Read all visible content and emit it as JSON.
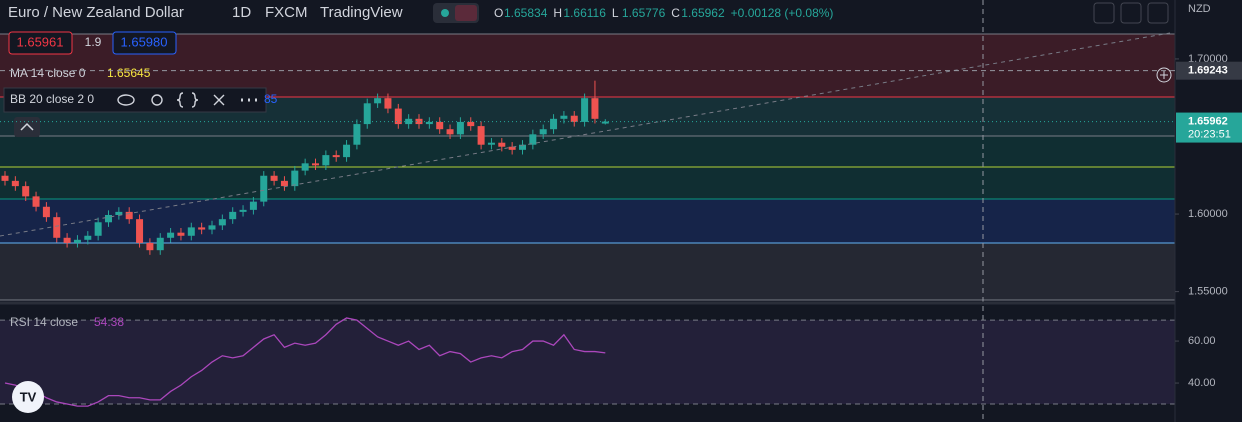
{
  "header": {
    "symbol": "Euro / New Zealand Dollar",
    "interval": "1D",
    "exchange": "FXCM",
    "source": "TradingView",
    "ohlc": [
      {
        "label": "O",
        "value": "1.65834"
      },
      {
        "label": "H",
        "value": "1.66116"
      },
      {
        "label": "L",
        "value": "1.65776"
      },
      {
        "label": "C",
        "value": "1.65962"
      }
    ],
    "change": "+0.00128 (+0.08%)"
  },
  "order_panel": {
    "sell": "1.65961",
    "spread": "1.9",
    "buy": "1.65980"
  },
  "indicators": [
    {
      "name": "MA 14 close 0",
      "value": "1.65645"
    },
    {
      "name": "BB 20 close 2 0",
      "value": "85"
    }
  ],
  "currency": "NZD",
  "chart_data": [
    {
      "type": "candlestick",
      "up_color": "#26a69a",
      "down_color": "#ef5350",
      "open": [
        1.6247,
        1.6214,
        1.618,
        1.6114,
        1.6047,
        1.598,
        1.5847,
        1.5814,
        1.5834,
        1.586,
        1.5947,
        1.5994,
        1.6014,
        1.5967,
        1.5814,
        1.5767,
        1.5847,
        1.588,
        1.586,
        1.5914,
        1.59,
        1.5927,
        1.5967,
        1.6014,
        1.6027,
        1.608,
        1.6247,
        1.6214,
        1.618,
        1.628,
        1.6327,
        1.6314,
        1.638,
        1.6367,
        1.6447,
        1.658,
        1.6714,
        1.6747,
        1.668,
        1.658,
        1.6614,
        1.658,
        1.6594,
        1.6547,
        1.6514,
        1.6594,
        1.6567,
        1.6447,
        1.646,
        1.6434,
        1.6414,
        1.6447,
        1.6514,
        1.6547,
        1.6614,
        1.6634,
        1.6594,
        1.6747,
        1.65834
      ],
      "high": [
        1.6277,
        1.6244,
        1.621,
        1.6144,
        1.6077,
        1.601,
        1.5877,
        1.5864,
        1.589,
        1.5977,
        1.6024,
        1.6044,
        1.6044,
        1.5997,
        1.5844,
        1.5877,
        1.591,
        1.591,
        1.5944,
        1.5944,
        1.5957,
        1.5997,
        1.6044,
        1.6057,
        1.611,
        1.6277,
        1.6277,
        1.6244,
        1.631,
        1.6357,
        1.6357,
        1.641,
        1.641,
        1.6477,
        1.661,
        1.6744,
        1.6777,
        1.6777,
        1.671,
        1.6644,
        1.6644,
        1.6624,
        1.6624,
        1.6577,
        1.6624,
        1.6624,
        1.6597,
        1.649,
        1.649,
        1.6464,
        1.6477,
        1.6544,
        1.6577,
        1.6644,
        1.6664,
        1.6664,
        1.6777,
        1.686,
        1.66116
      ],
      "low": [
        1.6184,
        1.615,
        1.6084,
        1.6017,
        1.595,
        1.5817,
        1.5784,
        1.5784,
        1.5804,
        1.583,
        1.5917,
        1.5964,
        1.5937,
        1.5784,
        1.5737,
        1.5737,
        1.5817,
        1.583,
        1.583,
        1.587,
        1.587,
        1.5897,
        1.5937,
        1.5984,
        1.5997,
        1.605,
        1.6184,
        1.615,
        1.615,
        1.625,
        1.6284,
        1.6284,
        1.6337,
        1.6337,
        1.6417,
        1.655,
        1.6684,
        1.665,
        1.655,
        1.655,
        1.655,
        1.655,
        1.6517,
        1.6484,
        1.6484,
        1.6537,
        1.6417,
        1.6417,
        1.6404,
        1.6384,
        1.6384,
        1.6417,
        1.6484,
        1.6517,
        1.6584,
        1.6564,
        1.6564,
        1.6584,
        1.65776
      ],
      "close": [
        1.6214,
        1.618,
        1.6114,
        1.6047,
        1.598,
        1.5847,
        1.5814,
        1.5834,
        1.586,
        1.5947,
        1.5994,
        1.6014,
        1.5967,
        1.5814,
        1.5767,
        1.5847,
        1.588,
        1.586,
        1.5914,
        1.59,
        1.5927,
        1.5967,
        1.6014,
        1.6027,
        1.608,
        1.6247,
        1.6214,
        1.618,
        1.628,
        1.6327,
        1.6314,
        1.638,
        1.6367,
        1.6447,
        1.658,
        1.6714,
        1.6747,
        1.668,
        1.658,
        1.6614,
        1.658,
        1.6594,
        1.6547,
        1.6514,
        1.6594,
        1.6567,
        1.6447,
        1.646,
        1.6434,
        1.6414,
        1.6447,
        1.6514,
        1.6547,
        1.6614,
        1.6634,
        1.6594,
        1.6747,
        1.6614,
        1.65962
      ],
      "ylim": [
        1.5433,
        1.738
      ],
      "yticks": [
        {
          "value": 1.7,
          "label": "1.70000"
        },
        {
          "value": 1.6,
          "label": "1.60000"
        },
        {
          "value": 1.55,
          "label": "1.55000"
        }
      ],
      "levels": [
        {
          "value": 1.7161,
          "color": "#787b86"
        },
        {
          "value": 1.6755,
          "color": "#f23645"
        },
        {
          "value": 1.6503,
          "color": "#787b86"
        },
        {
          "value": 1.6303,
          "color": "#b2d235"
        },
        {
          "value": 1.6097,
          "color": "#089981"
        },
        {
          "value": 1.5813,
          "color": "#64b5f6"
        },
        {
          "value": 1.5446,
          "color": "#787b86"
        }
      ],
      "badges": [
        {
          "value": 1.69243,
          "label": "1.69243",
          "color": "#363a45"
        },
        {
          "value": 1.65962,
          "label": "1.65962",
          "countdown": "20:23:51",
          "color": "#26a69a"
        }
      ]
    },
    {
      "type": "line",
      "title": "RSI 14 close",
      "legend_value": "54.38",
      "color": "#ab47bc",
      "values": [
        40,
        39,
        37,
        36,
        33,
        31,
        30,
        29,
        29,
        31,
        34,
        34,
        33,
        33,
        32,
        32,
        36,
        39,
        43,
        46,
        50,
        53,
        52,
        53,
        57,
        61,
        63,
        57,
        59,
        58,
        59,
        63,
        68,
        71,
        70,
        66,
        62,
        60,
        58,
        60,
        56,
        58,
        53,
        55,
        54,
        50,
        52,
        53,
        52,
        55,
        56,
        60,
        60,
        58,
        63,
        56,
        55,
        55,
        54.38
      ],
      "ylim": [
        22.4,
        76.7
      ],
      "yticks": [
        {
          "value": 60,
          "label": "60.00"
        },
        {
          "value": 40,
          "label": "40.00"
        }
      ],
      "band": [
        30,
        70
      ]
    }
  ]
}
